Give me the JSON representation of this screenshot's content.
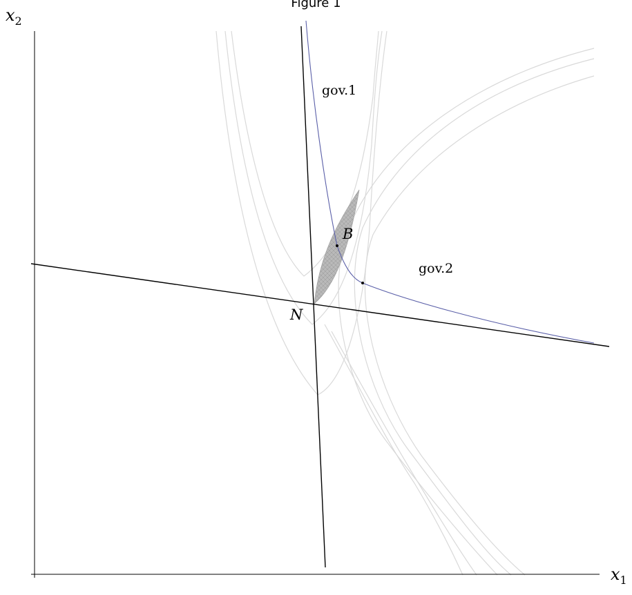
{
  "figure": {
    "title": "Figure 1"
  },
  "axes": {
    "x_symbol": "x",
    "x_index": "1",
    "y_symbol": "x",
    "y_index": "2"
  },
  "labels": {
    "gov1": "gov.1",
    "gov2": "gov.2",
    "point_n": "N",
    "point_b": "B"
  },
  "colors": {
    "axes": "#000000",
    "indifference_curves": "#d9d9d9",
    "contract_curve": "#5a5fa8",
    "lens_fill": "#b9b9b9"
  }
}
